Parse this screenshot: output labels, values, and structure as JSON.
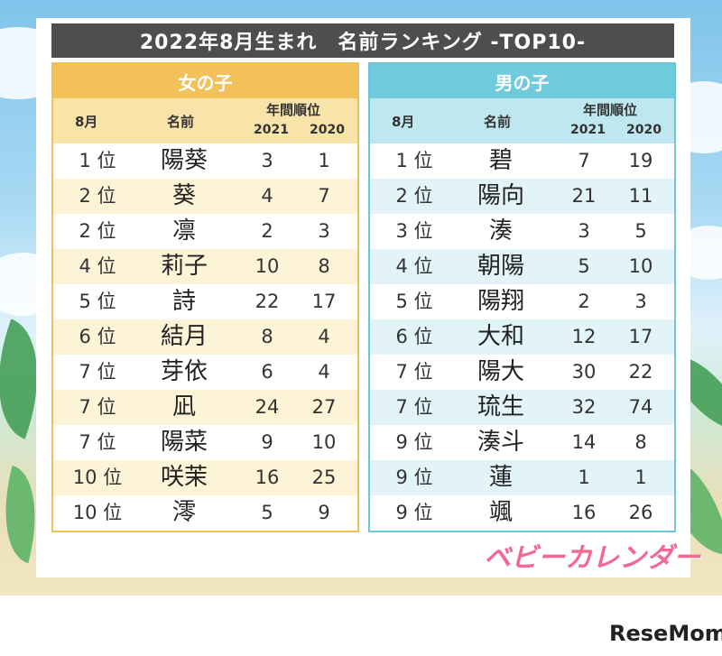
{
  "title": "2022年8月生まれ　名前ランキング -TOP10-",
  "columns": {
    "month": "8月",
    "name": "名前",
    "annual_rank": "年間順位",
    "year1": "2021",
    "year2": "2020"
  },
  "girls": {
    "heading": "女の子",
    "rows": [
      {
        "rank": "1 位",
        "name": "陽葵",
        "y2021": "3",
        "y2020": "1"
      },
      {
        "rank": "2 位",
        "name": "葵",
        "y2021": "4",
        "y2020": "7"
      },
      {
        "rank": "2 位",
        "name": "凛",
        "y2021": "2",
        "y2020": "3"
      },
      {
        "rank": "4 位",
        "name": "莉子",
        "y2021": "10",
        "y2020": "8"
      },
      {
        "rank": "5 位",
        "name": "詩",
        "y2021": "22",
        "y2020": "17"
      },
      {
        "rank": "6 位",
        "name": "結月",
        "y2021": "8",
        "y2020": "4"
      },
      {
        "rank": "7 位",
        "name": "芽依",
        "y2021": "6",
        "y2020": "4"
      },
      {
        "rank": "7 位",
        "name": "凪",
        "y2021": "24",
        "y2020": "27"
      },
      {
        "rank": "7 位",
        "name": "陽菜",
        "y2021": "9",
        "y2020": "10"
      },
      {
        "rank": "10 位",
        "name": "咲茉",
        "y2021": "16",
        "y2020": "25"
      },
      {
        "rank": "10 位",
        "name": "澪",
        "y2021": "5",
        "y2020": "9"
      }
    ]
  },
  "boys": {
    "heading": "男の子",
    "rows": [
      {
        "rank": "1 位",
        "name": "碧",
        "y2021": "7",
        "y2020": "19"
      },
      {
        "rank": "2 位",
        "name": "陽向",
        "y2021": "21",
        "y2020": "11"
      },
      {
        "rank": "3 位",
        "name": "湊",
        "y2021": "3",
        "y2020": "5"
      },
      {
        "rank": "4 位",
        "name": "朝陽",
        "y2021": "5",
        "y2020": "10"
      },
      {
        "rank": "5 位",
        "name": "陽翔",
        "y2021": "2",
        "y2020": "3"
      },
      {
        "rank": "6 位",
        "name": "大和",
        "y2021": "12",
        "y2020": "17"
      },
      {
        "rank": "7 位",
        "name": "陽大",
        "y2021": "30",
        "y2020": "22"
      },
      {
        "rank": "7 位",
        "name": "琉生",
        "y2021": "32",
        "y2020": "74"
      },
      {
        "rank": "9 位",
        "name": "湊斗",
        "y2021": "14",
        "y2020": "8"
      },
      {
        "rank": "9 位",
        "name": "蓮",
        "y2021": "1",
        "y2020": "1"
      },
      {
        "rank": "9 位",
        "name": "颯",
        "y2021": "16",
        "y2020": "26"
      }
    ]
  },
  "brand": "ベビーカレンダー",
  "watermark": {
    "text1": "ReseMom",
    "dot": "."
  },
  "colors": {
    "girl_accent": "#f2c15a",
    "boy_accent": "#6fcadb",
    "title_bg": "#4e4e4e",
    "brand": "#f06a93"
  }
}
